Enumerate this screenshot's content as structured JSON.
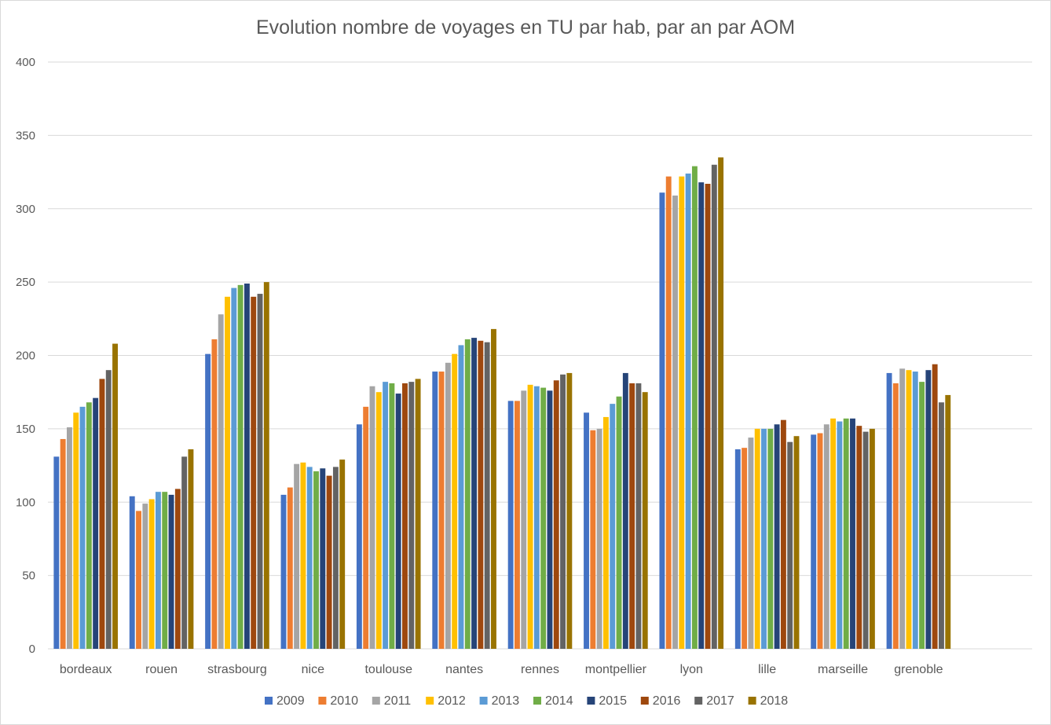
{
  "chart_data": {
    "type": "bar",
    "title": "Evolution nombre de voyages en TU par hab, par an par AOM",
    "xlabel": "",
    "ylabel": "",
    "ylim": [
      0,
      400
    ],
    "yticks": [
      "0",
      "50",
      "100",
      "150",
      "200",
      "250",
      "300",
      "350",
      "400"
    ],
    "grid": true,
    "legend_position": "bottom",
    "categories": [
      "bordeaux",
      "rouen",
      "strasbourg",
      "nice",
      "toulouse",
      "nantes",
      "rennes",
      "montpellier",
      "lyon",
      "lille",
      "marseille",
      "grenoble"
    ],
    "series": [
      {
        "name": "2009",
        "color": "#4472c4",
        "values": [
          131,
          104,
          201,
          105,
          153,
          189,
          169,
          161,
          311,
          136,
          146,
          188
        ]
      },
      {
        "name": "2010",
        "color": "#ed7d31",
        "values": [
          143,
          94,
          211,
          110,
          165,
          189,
          169,
          149,
          322,
          137,
          147,
          181
        ]
      },
      {
        "name": "2011",
        "color": "#a5a5a5",
        "values": [
          151,
          99,
          228,
          126,
          179,
          195,
          176,
          150,
          309,
          144,
          153,
          191
        ]
      },
      {
        "name": "2012",
        "color": "#ffc000",
        "values": [
          161,
          102,
          240,
          127,
          175,
          201,
          180,
          158,
          322,
          150,
          157,
          190
        ]
      },
      {
        "name": "2013",
        "color": "#5b9bd5",
        "values": [
          165,
          107,
          246,
          124,
          182,
          207,
          179,
          167,
          324,
          150,
          155,
          189
        ]
      },
      {
        "name": "2014",
        "color": "#70ad47",
        "values": [
          168,
          107,
          248,
          121,
          181,
          211,
          178,
          172,
          329,
          150,
          157,
          182
        ]
      },
      {
        "name": "2015",
        "color": "#264478",
        "values": [
          171,
          105,
          249,
          123,
          174,
          212,
          176,
          188,
          318,
          153,
          157,
          190
        ]
      },
      {
        "name": "2016",
        "color": "#9e480e",
        "values": [
          184,
          109,
          240,
          118,
          181,
          210,
          183,
          181,
          317,
          156,
          152,
          194
        ]
      },
      {
        "name": "2017",
        "color": "#636363",
        "values": [
          190,
          131,
          242,
          124,
          182,
          209,
          187,
          181,
          330,
          141,
          148,
          168
        ]
      },
      {
        "name": "2018",
        "color": "#997300",
        "values": [
          208,
          136,
          250,
          129,
          184,
          218,
          188,
          175,
          335,
          145,
          150,
          173
        ]
      }
    ]
  }
}
